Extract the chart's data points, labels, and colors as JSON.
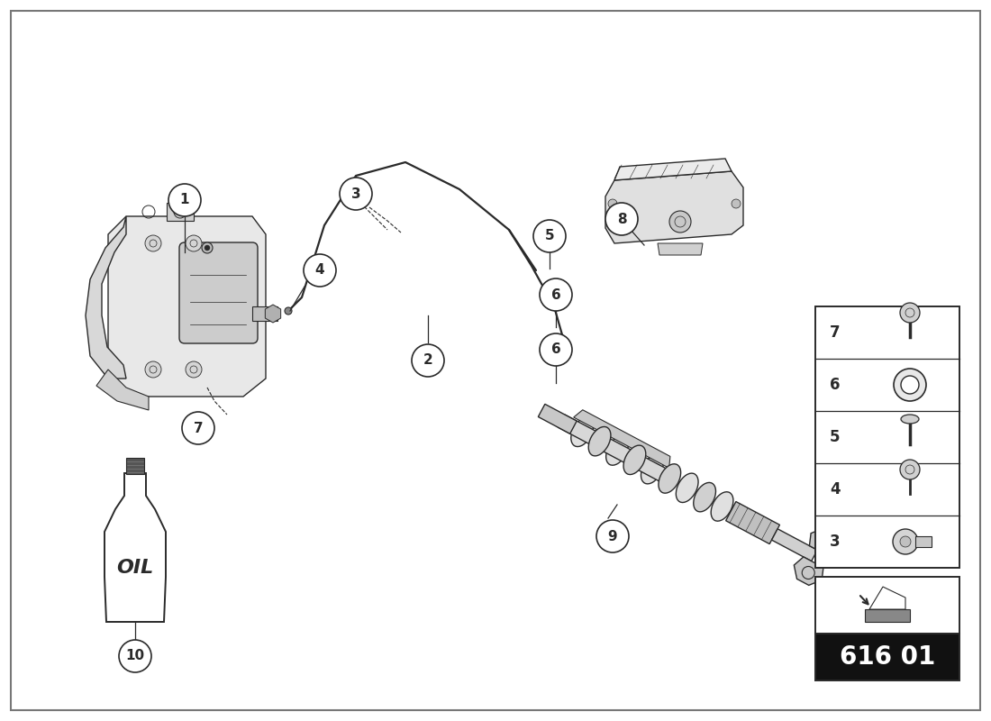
{
  "diagram_number": "616 01",
  "background_color": "#ffffff",
  "line_color": "#2a2a2a",
  "legend_items": [
    7,
    6,
    5,
    4,
    3
  ],
  "border_color": "#555555"
}
